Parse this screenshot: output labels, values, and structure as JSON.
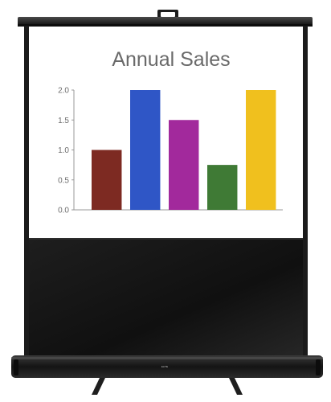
{
  "chart_data": {
    "type": "bar",
    "title": "Annual Sales",
    "xlabel": "",
    "ylabel": "",
    "categories": [
      "",
      "",
      "",
      "",
      ""
    ],
    "values": [
      1.0,
      2.0,
      1.5,
      0.75,
      2.0
    ],
    "colors": [
      "#7d2a22",
      "#2f56c6",
      "#a2299c",
      "#3f7a35",
      "#f0c01e"
    ],
    "ylim": [
      0,
      2.0
    ],
    "yticks": [
      "0.0",
      "0.5",
      "1.0",
      "1.5",
      "2.0"
    ],
    "grid": false
  },
  "screen": {
    "surface_color": "#ffffff",
    "case_color": "#1a1a1a",
    "brand_mark": "ELITE"
  }
}
